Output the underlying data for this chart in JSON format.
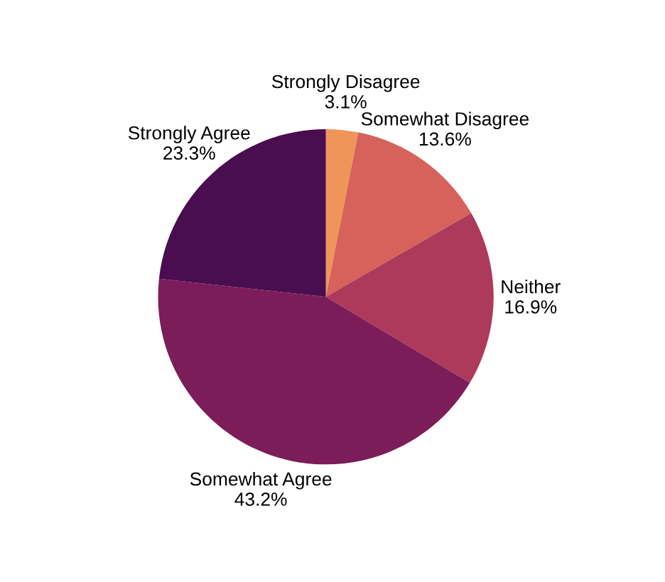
{
  "chart_data": {
    "type": "pie",
    "categories": [
      "Strongly Disagree",
      "Somewhat Disagree",
      "Neither",
      "Somewhat Agree",
      "Strongly Agree"
    ],
    "values": [
      3.1,
      13.6,
      16.9,
      43.2,
      23.3
    ],
    "value_labels": [
      "3.1%",
      "13.6%",
      "16.9%",
      "43.2%",
      "23.3%"
    ],
    "colors": [
      "#f0955a",
      "#d6625b",
      "#ad3a5b",
      "#7c1d5a",
      "#4a0d4f"
    ],
    "legend": false
  }
}
